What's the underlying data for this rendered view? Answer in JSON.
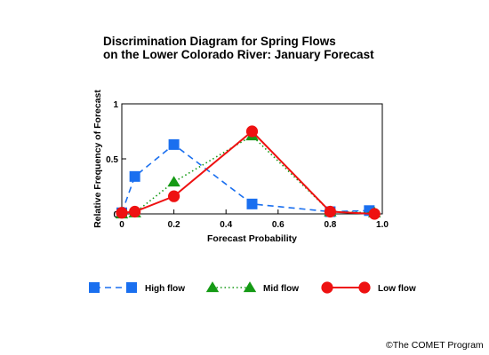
{
  "chart_data": {
    "type": "line",
    "title_lines": [
      "Discrimination Diagram for Spring Flows",
      "on the Lower Colorado River: January Forecast"
    ],
    "xlabel": "Forecast Probability",
    "ylabel": "Relative Frequency of Forecast",
    "xlim": [
      0,
      1
    ],
    "ylim": [
      0,
      1
    ],
    "x_ticks": [
      {
        "value": 0,
        "label": "0"
      },
      {
        "value": 0.2,
        "label": "0.2"
      },
      {
        "value": 0.4,
        "label": "0.4"
      },
      {
        "value": 0.6,
        "label": "0.6"
      },
      {
        "value": 0.8,
        "label": "0.8"
      },
      {
        "value": 1,
        "label": "1.0"
      }
    ],
    "y_ticks": [
      {
        "value": 0,
        "label": "0"
      },
      {
        "value": 0.5,
        "label": "0.5"
      },
      {
        "value": 1,
        "label": "1"
      }
    ],
    "grid": false,
    "legend_position": "bottom",
    "series": [
      {
        "name": "High flow",
        "color": "#1a6fef",
        "marker": "square",
        "line_style": "dashed",
        "x": [
          0,
          0.05,
          0.2,
          0.5,
          0.8,
          0.95
        ],
        "y": [
          0.01,
          0.34,
          0.63,
          0.09,
          0.02,
          0.03
        ]
      },
      {
        "name": "Mid flow",
        "color": "#159a15",
        "marker": "triangle",
        "line_style": "dotted",
        "x": [
          0,
          0.05,
          0.2,
          0.5,
          0.8,
          0.97
        ],
        "y": [
          0.0,
          0.01,
          0.29,
          0.71,
          0.02,
          0.01
        ]
      },
      {
        "name": "Low flow",
        "color": "#ee1111",
        "marker": "circle",
        "line_style": "solid",
        "x": [
          0,
          0.05,
          0.2,
          0.5,
          0.8,
          0.97
        ],
        "y": [
          0.01,
          0.02,
          0.16,
          0.75,
          0.02,
          0.0
        ]
      }
    ]
  },
  "credit": "©The COMET Program"
}
